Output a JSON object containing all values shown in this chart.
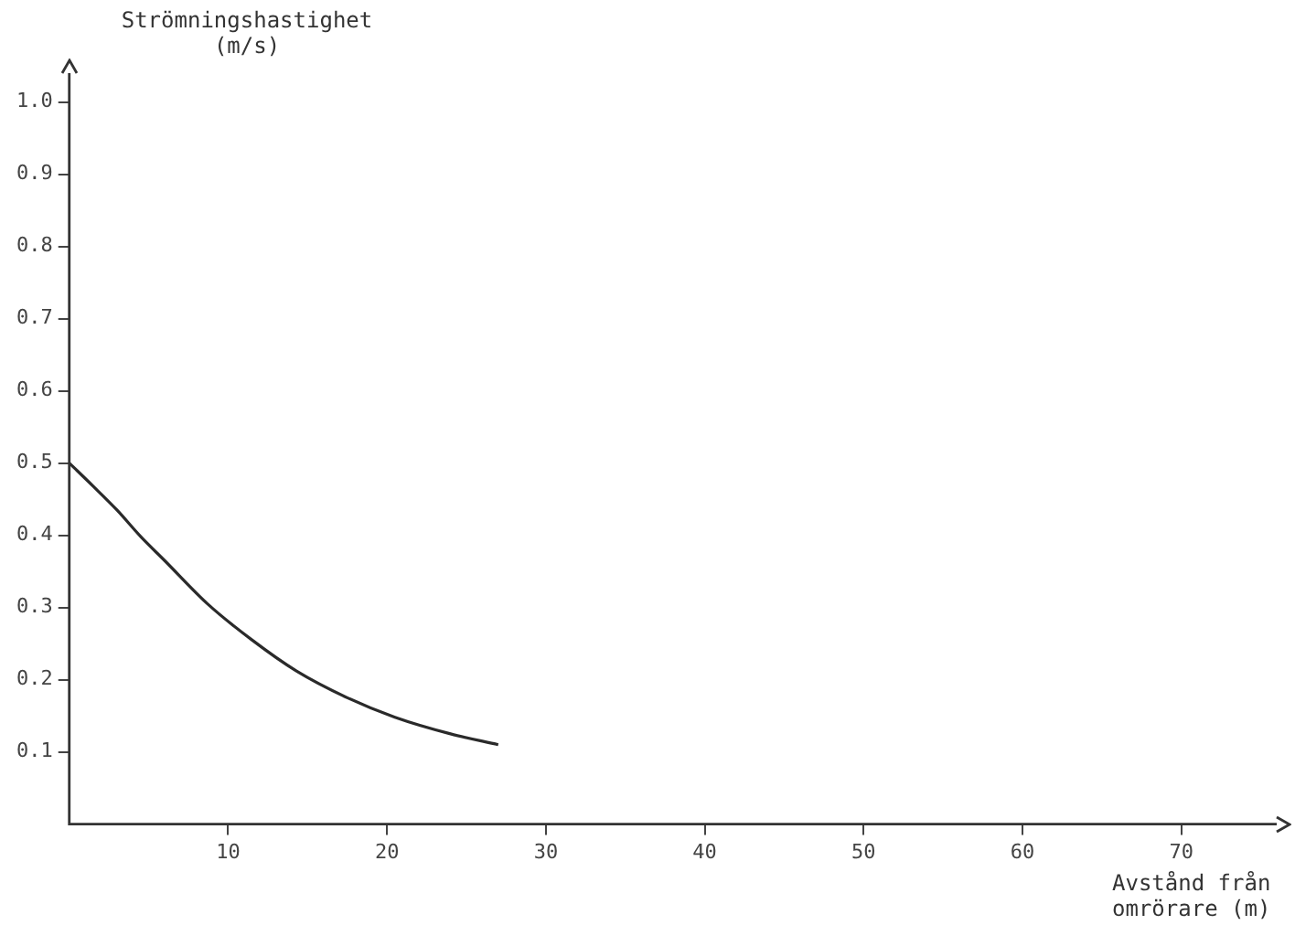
{
  "chart_data": {
    "type": "line",
    "ylabel": "Strömningshastighet (m/s)",
    "xlabel": "Avstånd från omrörare (m)",
    "xlim": [
      0,
      76
    ],
    "xticks": [
      10,
      20,
      30,
      40,
      50,
      60,
      70
    ],
    "ylim": [
      0,
      1.04
    ],
    "yticks": [
      0.1,
      0.2,
      0.3,
      0.4,
      0.5,
      0.6,
      0.7,
      0.8,
      0.9,
      {
        "value": 1,
        "label": "1.0"
      }
    ],
    "grid": false,
    "series": [
      {
        "color": "#2a2a2a",
        "x": [
          0,
          1.5,
          3,
          4.5,
          6,
          8.7,
          11.5,
          14.3,
          17.5,
          20.5,
          24,
          27
        ],
        "values": [
          0.5,
          0.468,
          0.435,
          0.398,
          0.365,
          0.305,
          0.255,
          0.212,
          0.175,
          0.148,
          0.125,
          0.11
        ]
      }
    ]
  }
}
